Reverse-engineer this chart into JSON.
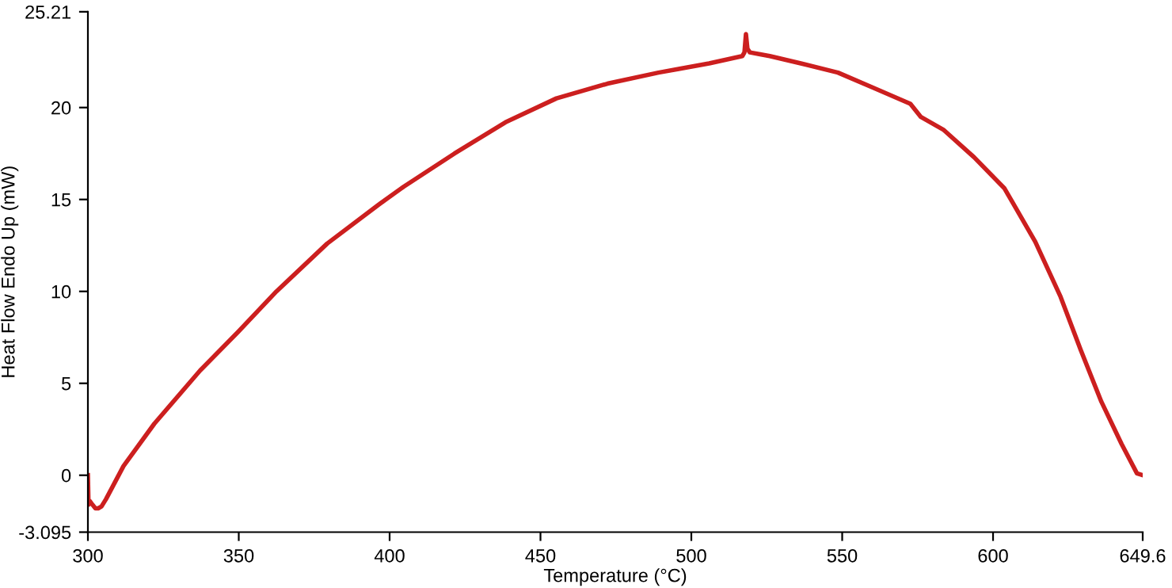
{
  "chart_data": {
    "type": "line",
    "xlabel": "Temperature (°C)",
    "ylabel": "Heat Flow Endo Up (mW)",
    "xlim": [
      300,
      649.6
    ],
    "ylim": [
      -3.095,
      25.21
    ],
    "xticks": [
      300,
      350,
      400,
      450,
      500,
      550,
      600,
      649.6
    ],
    "yticks": [
      -3.095,
      0,
      5,
      10,
      15,
      20,
      25.21
    ],
    "grid": false,
    "marker": "none",
    "line_style": "solid",
    "series": [
      {
        "color": "#cc1f1f",
        "x": [
          300,
          300.2,
          300.6,
          301.5,
          302.5,
          303.4,
          304.5,
          306,
          311.8,
          322,
          337.2,
          349.8,
          362.5,
          379.3,
          396.2,
          404.7,
          421.5,
          438.4,
          455.3,
          472.2,
          489.1,
          495.8,
          505.9,
          516.9,
          517.6,
          518.1,
          518.6,
          519.4,
          522.8,
          526,
          536.3,
          548.6,
          560,
          572.6,
          576,
          583.5,
          593.7,
          603.8,
          614,
          622.4,
          629.1,
          635.9,
          642.6,
          647.7,
          649.6
        ],
        "values": [
          0,
          -1.6,
          -1.4,
          -1.6,
          -1.8,
          -1.8,
          -1.7,
          -1.3,
          0.5,
          2.8,
          5.7,
          7.8,
          10.0,
          12.6,
          14.7,
          15.7,
          17.5,
          19.2,
          20.5,
          21.3,
          21.9,
          22.1,
          22.4,
          22.8,
          23.0,
          24.0,
          23.2,
          23.0,
          22.9,
          22.8,
          22.4,
          21.9,
          21.1,
          20.2,
          19.5,
          18.8,
          17.3,
          15.6,
          12.7,
          9.7,
          6.8,
          4.0,
          1.7,
          0.1,
          0.0
        ]
      }
    ]
  }
}
